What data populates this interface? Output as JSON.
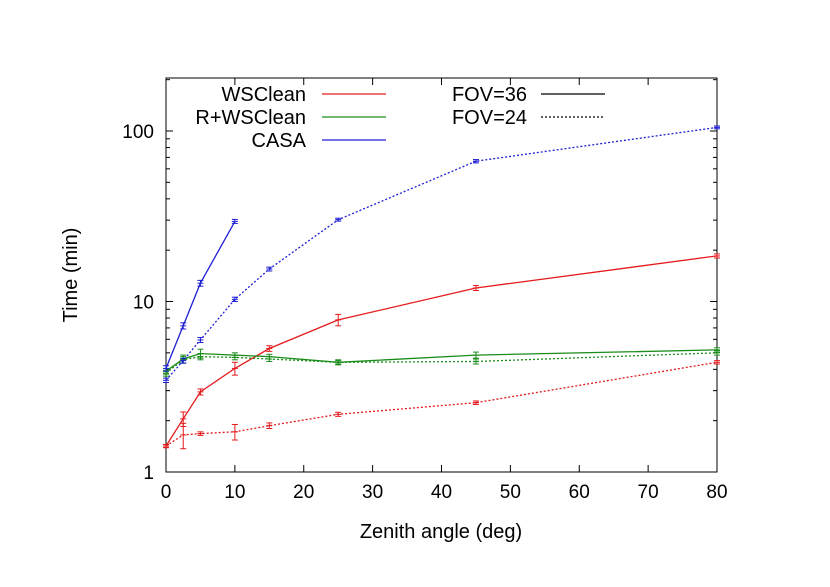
{
  "chart_data": {
    "type": "line",
    "title": "",
    "xlabel": "Zenith angle (deg)",
    "ylabel": "Time (min)",
    "xlim": [
      0,
      80
    ],
    "ylim": [
      1,
      200
    ],
    "yscale": "log",
    "xticks": [
      0,
      10,
      20,
      30,
      40,
      50,
      60,
      70,
      80
    ],
    "yticks": [
      1,
      10,
      100
    ],
    "xtick_labels": [
      "0",
      "10",
      "20",
      "30",
      "40",
      "50",
      "60",
      "70",
      "80"
    ],
    "ytick_labels": [
      "1",
      "10",
      "100"
    ],
    "grid": false,
    "legend": {
      "placement": "top-left",
      "method_entries": [
        "WSClean",
        "R+WSClean",
        "CASA"
      ],
      "fov_entries": [
        "FOV=36",
        "FOV=24"
      ]
    },
    "colors": {
      "WSClean": "#e41a1c",
      "R+WSClean": "#1a8c1a",
      "CASA": "#1f1fd6"
    },
    "series": [
      {
        "method": "WSClean",
        "fov": "FOV=36",
        "style": "solid",
        "x": [
          0,
          2.5,
          5,
          10,
          15,
          25,
          45,
          80
        ],
        "y": [
          1.42,
          2.05,
          2.95,
          4.05,
          5.3,
          7.8,
          12.0,
          18.5
        ],
        "err": [
          0.03,
          0.2,
          0.12,
          0.35,
          0.2,
          0.6,
          0.4,
          0.5
        ]
      },
      {
        "method": "WSClean",
        "fov": "FOV=24",
        "style": "dotted",
        "x": [
          0,
          2.5,
          5,
          10,
          15,
          25,
          45,
          80
        ],
        "y": [
          1.42,
          1.65,
          1.68,
          1.72,
          1.87,
          2.18,
          2.55,
          4.4
        ],
        "err": [
          0.03,
          0.28,
          0.04,
          0.18,
          0.07,
          0.06,
          0.06,
          0.1
        ]
      },
      {
        "method": "R+WSClean",
        "fov": "FOV=36",
        "style": "solid",
        "x": [
          0,
          2.5,
          5,
          10,
          15,
          25,
          45,
          80
        ],
        "y": [
          3.9,
          4.6,
          4.95,
          4.85,
          4.75,
          4.4,
          4.85,
          5.2
        ],
        "err": [
          0.15,
          0.25,
          0.3,
          0.15,
          0.15,
          0.15,
          0.2,
          0.15
        ]
      },
      {
        "method": "R+WSClean",
        "fov": "FOV=24",
        "style": "dotted",
        "x": [
          0,
          2.5,
          5,
          10,
          15,
          25,
          45,
          80
        ],
        "y": [
          3.8,
          4.55,
          4.75,
          4.7,
          4.6,
          4.4,
          4.45,
          5.0
        ],
        "err": [
          0.15,
          0.2,
          0.2,
          0.15,
          0.15,
          0.1,
          0.15,
          0.15
        ]
      },
      {
        "method": "CASA",
        "fov": "FOV=36",
        "style": "solid",
        "x": [
          0,
          2.5,
          5,
          10
        ],
        "y": [
          4.05,
          7.2,
          12.8,
          29.5
        ],
        "err": [
          0.15,
          0.3,
          0.5,
          0.8
        ]
      },
      {
        "method": "CASA",
        "fov": "FOV=24",
        "style": "dotted",
        "x": [
          0,
          2.5,
          5,
          10,
          15,
          25,
          45,
          80
        ],
        "y": [
          3.45,
          4.5,
          5.95,
          10.3,
          15.5,
          30.2,
          66.5,
          105
        ],
        "err": [
          0.1,
          0.15,
          0.2,
          0.3,
          0.4,
          0.6,
          1.5,
          2.0
        ]
      }
    ]
  }
}
